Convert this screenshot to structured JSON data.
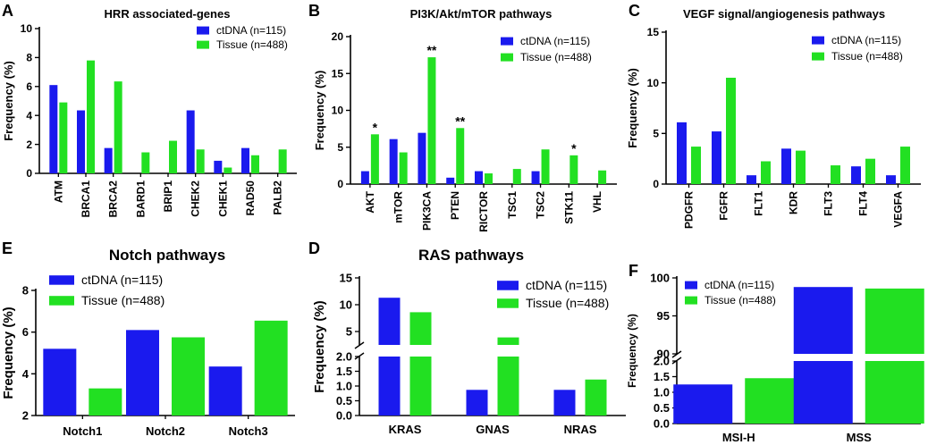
{
  "colors": {
    "ctdna": "#1a1aee",
    "tissue": "#22e022",
    "axis": "#000000"
  },
  "chart_data": [
    {
      "panel": "A",
      "type": "bar",
      "title": "HRR associated-genes",
      "ylabel": "Frequency (%)",
      "xlabel": "",
      "ylim": [
        0,
        10
      ],
      "yticks": [
        0,
        2,
        4,
        6,
        8,
        10
      ],
      "categories": [
        "ATM",
        "BRCA1",
        "BRCA2",
        "BARD1",
        "BRIP1",
        "CHEK2",
        "CHEK1",
        "RAD50",
        "PALB2"
      ],
      "series": [
        {
          "name": "ctDNA (n=115)",
          "values": [
            6.1,
            4.35,
            1.75,
            0,
            0,
            4.35,
            0.87,
            1.75,
            0
          ]
        },
        {
          "name": "Tissue (n=488)",
          "values": [
            4.9,
            7.8,
            6.35,
            1.45,
            2.25,
            1.65,
            0.4,
            1.25,
            1.65
          ]
        }
      ],
      "annotations": [],
      "legend": "top-right"
    },
    {
      "panel": "B",
      "type": "bar",
      "title": "PI3K/Akt/mTOR pathways",
      "ylabel": "Frequency (%)",
      "xlabel": "",
      "ylim": [
        0,
        20
      ],
      "yticks": [
        0,
        5,
        10,
        15,
        20
      ],
      "categories": [
        "AKT",
        "mTOR",
        "PIK3CA",
        "PTEN",
        "RICTOR",
        "TSC1",
        "TSC2",
        "STK11",
        "VHL"
      ],
      "series": [
        {
          "name": "ctDNA (n=115)",
          "values": [
            1.75,
            6.1,
            6.95,
            0.87,
            1.75,
            0,
            1.75,
            0,
            0
          ]
        },
        {
          "name": "Tissue (n=488)",
          "values": [
            6.75,
            4.3,
            17.2,
            7.6,
            1.45,
            2.05,
            4.7,
            3.9,
            1.85
          ]
        }
      ],
      "annotations": [
        {
          "category": "AKT",
          "text": "*"
        },
        {
          "category": "PIK3CA",
          "text": "**"
        },
        {
          "category": "PTEN",
          "text": "**"
        },
        {
          "category": "STK11",
          "text": "*"
        }
      ],
      "legend": "top-right"
    },
    {
      "panel": "C",
      "type": "bar",
      "title": "VEGF signal/angiogenesis pathways",
      "ylabel": "Frequency (%)",
      "xlabel": "",
      "ylim": [
        0,
        15
      ],
      "yticks": [
        0,
        5,
        10,
        15
      ],
      "categories": [
        "PDGFR",
        "FGFR",
        "FLT1",
        "KDR",
        "FLT3",
        "FLT4",
        "VEGFA"
      ],
      "series": [
        {
          "name": "ctDNA (n=115)",
          "values": [
            6.1,
            5.2,
            0.87,
            3.5,
            0,
            1.75,
            0.87
          ]
        },
        {
          "name": "Tissue (n=488)",
          "values": [
            3.7,
            10.5,
            2.25,
            3.3,
            1.85,
            2.5,
            3.7
          ]
        }
      ],
      "annotations": [],
      "legend": "top-right"
    },
    {
      "panel": "E",
      "type": "bar",
      "title": "Notch pathways",
      "ylabel": "Frequency (%)",
      "xlabel": "",
      "ylim": [
        2,
        8
      ],
      "yticks": [
        2,
        4,
        6,
        8
      ],
      "categories": [
        "Notch1",
        "Notch2",
        "Notch3"
      ],
      "series": [
        {
          "name": "ctDNA (n=115)",
          "values": [
            5.2,
            6.1,
            4.35
          ]
        },
        {
          "name": "Tissue (n=488)",
          "values": [
            3.3,
            5.75,
            6.55
          ]
        }
      ],
      "annotations": [],
      "legend": "top-left"
    },
    {
      "panel": "D",
      "type": "bar",
      "title": "RAS pathways",
      "ylabel": "Frequency (%)",
      "xlabel": "",
      "broken_axis": {
        "lower": {
          "range": [
            0,
            2.0
          ],
          "ticks": [
            "0.0",
            "0.5",
            "1.0",
            "1.5",
            "2.0"
          ]
        },
        "upper": {
          "range": [
            2.5,
            15
          ],
          "ticks": [
            "5",
            "10",
            "15"
          ]
        }
      },
      "categories": [
        "KRAS",
        "GNAS",
        "NRAS"
      ],
      "series": [
        {
          "name": "ctDNA (n=115)",
          "values": [
            11.3,
            0.87,
            0.87
          ]
        },
        {
          "name": "Tissue (n=488)",
          "values": [
            8.6,
            3.9,
            1.22
          ]
        }
      ],
      "annotations": [],
      "legend": "top-right"
    },
    {
      "panel": "F",
      "type": "bar",
      "title": "",
      "ylabel": "Frequency (%)",
      "xlabel": "",
      "broken_axis": {
        "lower": {
          "range": [
            0,
            2.0
          ],
          "ticks": [
            "0.0",
            "0.5",
            "1.0",
            "1.5",
            "2.0"
          ]
        },
        "upper": {
          "range": [
            90,
            100
          ],
          "ticks": [
            "90",
            "95",
            "100"
          ]
        }
      },
      "categories": [
        "MSI-H",
        "MSS"
      ],
      "series": [
        {
          "name": "ctDNA (n=115)",
          "values": [
            1.25,
            98.8
          ]
        },
        {
          "name": "Tissue (n=488)",
          "values": [
            1.45,
            98.6
          ]
        }
      ],
      "annotations": [],
      "legend": "top-left"
    }
  ]
}
